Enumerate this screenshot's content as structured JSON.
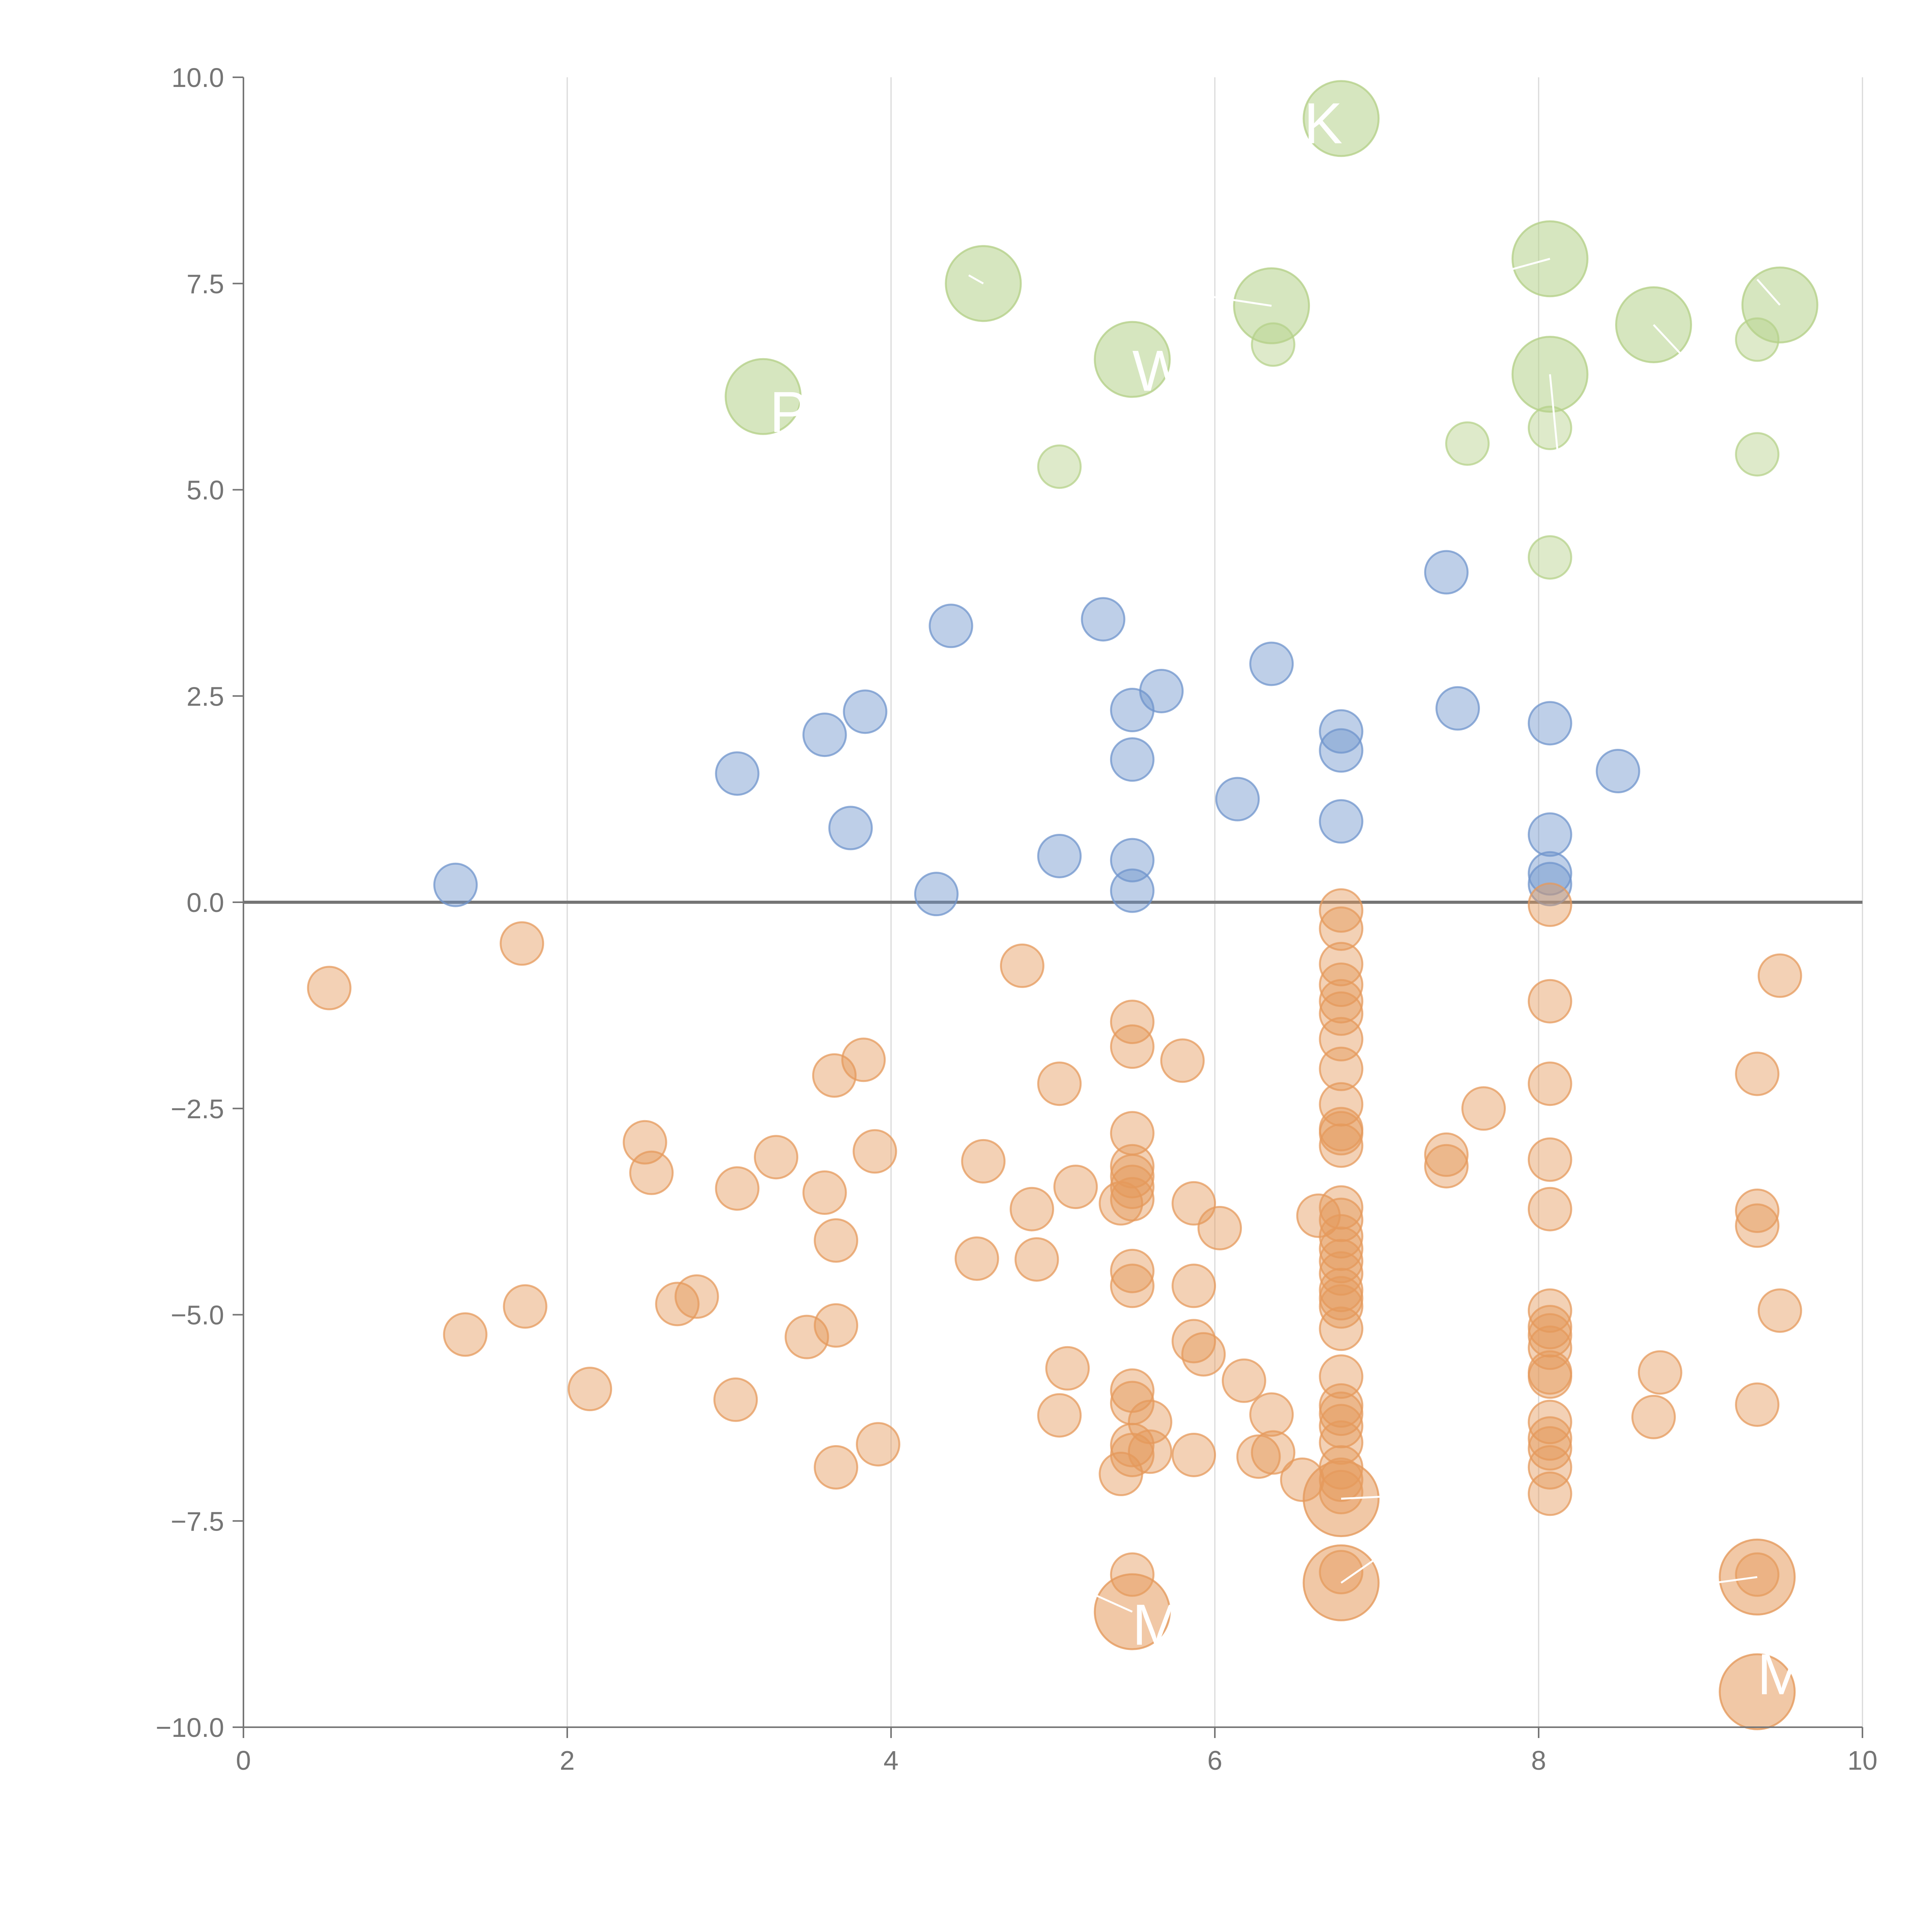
{
  "chart_data": {
    "type": "scatter",
    "title": "",
    "xlabel": "",
    "ylabel": "",
    "xlim": [
      0,
      10
    ],
    "ylim": [
      -10,
      10
    ],
    "grid": "vertical",
    "x_ticks": [
      "0",
      "2",
      "4",
      "6",
      "8",
      "10"
    ],
    "y_ticks": [
      "−10.0",
      "−7.5",
      "−5.0",
      "−2.5",
      "0.0",
      "2.5",
      "5.0",
      "7.5",
      "10.0"
    ],
    "x_tick_values": [
      0,
      2,
      4,
      6,
      8,
      10
    ],
    "y_tick_values": [
      -10,
      -7.5,
      -5,
      -2.5,
      0,
      2.5,
      5,
      7.5,
      10
    ],
    "series": [
      {
        "name": "blue",
        "color": "#6f94cc",
        "points": [
          [
            1.31,
            0.21
          ],
          [
            3.05,
            1.56
          ],
          [
            3.59,
            2.03
          ],
          [
            3.75,
            0.9
          ],
          [
            3.84,
            2.31
          ],
          [
            4.28,
            0.1
          ],
          [
            4.37,
            3.35
          ],
          [
            5.04,
            0.56
          ],
          [
            5.31,
            3.43
          ],
          [
            5.49,
            2.33
          ],
          [
            5.49,
            1.73
          ],
          [
            5.49,
            0.51
          ],
          [
            5.49,
            0.14
          ],
          [
            5.67,
            2.56
          ],
          [
            6.14,
            1.25
          ],
          [
            6.35,
            2.89
          ],
          [
            6.78,
            2.07
          ],
          [
            6.78,
            1.84
          ],
          [
            6.78,
            0.98
          ],
          [
            7.43,
            4.0
          ],
          [
            7.5,
            2.35
          ],
          [
            8.07,
            2.17
          ],
          [
            8.07,
            0.82
          ],
          [
            8.07,
            0.35
          ],
          [
            8.07,
            0.22
          ],
          [
            8.49,
            1.59
          ]
        ]
      },
      {
        "name": "orange",
        "color": "#e59a5c",
        "points": [
          [
            0.53,
            -1.04
          ],
          [
            1.72,
            -0.5
          ],
          [
            1.37,
            -5.24
          ],
          [
            1.74,
            -4.9
          ],
          [
            2.14,
            -5.9
          ],
          [
            2.48,
            -2.91
          ],
          [
            2.52,
            -3.28
          ],
          [
            2.68,
            -4.87
          ],
          [
            2.8,
            -4.78
          ],
          [
            3.04,
            -6.03
          ],
          [
            3.05,
            -3.47
          ],
          [
            3.29,
            -3.09
          ],
          [
            3.48,
            -5.27
          ],
          [
            3.59,
            -3.52
          ],
          [
            3.65,
            -2.1
          ],
          [
            3.66,
            -4.1
          ],
          [
            3.66,
            -5.13
          ],
          [
            3.66,
            -6.85
          ],
          [
            3.83,
            -1.91
          ],
          [
            3.9,
            -3.02
          ],
          [
            3.92,
            -6.57
          ],
          [
            4.53,
            -4.32
          ],
          [
            4.57,
            -3.14
          ],
          [
            4.81,
            -0.77
          ],
          [
            4.87,
            -3.72
          ],
          [
            4.9,
            -4.33
          ],
          [
            5.04,
            -2.2
          ],
          [
            5.04,
            -6.22
          ],
          [
            5.09,
            -5.65
          ],
          [
            5.14,
            -3.45
          ],
          [
            5.42,
            -3.65
          ],
          [
            5.42,
            -6.93
          ],
          [
            5.49,
            -1.45
          ],
          [
            5.49,
            -1.75
          ],
          [
            5.49,
            -2.8
          ],
          [
            5.49,
            -3.2
          ],
          [
            5.49,
            -3.32
          ],
          [
            5.49,
            -3.45
          ],
          [
            5.49,
            -3.6
          ],
          [
            5.49,
            -4.47
          ],
          [
            5.49,
            -4.65
          ],
          [
            5.49,
            -5.92
          ],
          [
            5.49,
            -6.07
          ],
          [
            5.49,
            -6.58
          ],
          [
            5.49,
            -6.7
          ],
          [
            5.49,
            -8.15
          ],
          [
            5.6,
            -6.3
          ],
          [
            5.6,
            -6.66
          ],
          [
            5.8,
            -1.92
          ],
          [
            5.87,
            -3.65
          ],
          [
            5.87,
            -4.65
          ],
          [
            5.87,
            -5.32
          ],
          [
            5.87,
            -6.7
          ],
          [
            5.93,
            -5.48
          ],
          [
            6.03,
            -3.95
          ],
          [
            6.18,
            -5.8
          ],
          [
            6.27,
            -6.72
          ],
          [
            6.35,
            -6.21
          ],
          [
            6.36,
            -6.67
          ],
          [
            6.54,
            -7.0
          ],
          [
            6.64,
            -3.8
          ],
          [
            6.78,
            -0.1
          ],
          [
            6.78,
            -0.32
          ],
          [
            6.78,
            -0.75
          ],
          [
            6.78,
            -1.0
          ],
          [
            6.78,
            -1.2
          ],
          [
            6.78,
            -1.35
          ],
          [
            6.78,
            -1.66
          ],
          [
            6.78,
            -2.02
          ],
          [
            6.78,
            -2.45
          ],
          [
            6.78,
            -2.75
          ],
          [
            6.78,
            -2.8
          ],
          [
            6.78,
            -2.95
          ],
          [
            6.78,
            -3.7
          ],
          [
            6.78,
            -3.85
          ],
          [
            6.78,
            -4.05
          ],
          [
            6.78,
            -4.2
          ],
          [
            6.78,
            -4.35
          ],
          [
            6.78,
            -4.5
          ],
          [
            6.78,
            -4.7
          ],
          [
            6.78,
            -4.8
          ],
          [
            6.78,
            -4.9
          ],
          [
            6.78,
            -5.17
          ],
          [
            6.78,
            -5.75
          ],
          [
            6.78,
            -6.1
          ],
          [
            6.78,
            -6.2
          ],
          [
            6.78,
            -6.35
          ],
          [
            6.78,
            -6.55
          ],
          [
            6.78,
            -6.85
          ],
          [
            6.78,
            -7.0
          ],
          [
            6.78,
            -7.15
          ],
          [
            6.78,
            -8.12
          ],
          [
            7.43,
            -3.06
          ],
          [
            7.43,
            -3.2
          ],
          [
            7.66,
            -2.5
          ],
          [
            8.07,
            -0.03
          ],
          [
            8.07,
            -1.2
          ],
          [
            8.07,
            -2.2
          ],
          [
            8.07,
            -3.12
          ],
          [
            8.07,
            -3.72
          ],
          [
            8.07,
            -4.95
          ],
          [
            8.07,
            -5.15
          ],
          [
            8.07,
            -5.25
          ],
          [
            8.07,
            -5.4
          ],
          [
            8.07,
            -5.7
          ],
          [
            8.07,
            -5.75
          ],
          [
            8.07,
            -6.3
          ],
          [
            8.07,
            -6.5
          ],
          [
            8.07,
            -6.62
          ],
          [
            8.07,
            -6.85
          ],
          [
            8.07,
            -7.17
          ],
          [
            8.71,
            -6.24
          ],
          [
            8.75,
            -5.7
          ],
          [
            9.35,
            -2.08
          ],
          [
            9.35,
            -3.74
          ],
          [
            9.35,
            -3.92
          ],
          [
            9.35,
            -6.09
          ],
          [
            9.35,
            -8.15
          ],
          [
            9.49,
            -0.89
          ],
          [
            9.49,
            -4.95
          ]
        ],
        "highlighted": [
          [
            5.49,
            -8.6
          ],
          [
            6.78,
            -7.23
          ],
          [
            6.78,
            -8.25
          ],
          [
            9.35,
            -8.18
          ],
          [
            9.35,
            -9.57
          ]
        ]
      },
      {
        "name": "green",
        "color": "#b5d18a",
        "points": [
          [
            5.04,
            5.28
          ],
          [
            6.36,
            6.76
          ],
          [
            7.56,
            5.56
          ],
          [
            8.07,
            5.75
          ],
          [
            8.07,
            4.18
          ],
          [
            9.35,
            6.82
          ],
          [
            9.35,
            5.43
          ]
        ],
        "highlighted": [
          [
            3.21,
            6.13
          ],
          [
            4.57,
            7.5
          ],
          [
            5.49,
            6.58
          ],
          [
            6.35,
            7.23
          ],
          [
            6.78,
            9.5
          ],
          [
            8.07,
            7.8
          ],
          [
            8.07,
            6.4
          ],
          [
            8.71,
            7.0
          ],
          [
            9.49,
            7.24
          ]
        ]
      }
    ],
    "annotations": [
      {
        "text": "K",
        "x": 6.55,
        "y": 9.2
      },
      {
        "text": "'",
        "x": 4.55,
        "y": 7.9
      },
      {
        "text": "W",
        "x": 5.49,
        "y": 6.2
      },
      {
        "text": "P",
        "x": 3.25,
        "y": 5.7
      },
      {
        "text": "M",
        "x": 5.49,
        "y": -9.0
      },
      {
        "text": "MG",
        "x": 9.35,
        "y": -9.6
      }
    ],
    "annotation_leaders": [
      [
        [
          4.57,
          7.5
        ],
        [
          4.48,
          7.6
        ]
      ],
      [
        [
          6.35,
          7.23
        ],
        [
          5.95,
          7.35
        ]
      ],
      [
        [
          8.07,
          7.8
        ],
        [
          7.7,
          7.6
        ]
      ],
      [
        [
          8.07,
          6.4
        ],
        [
          8.12,
          5.4
        ]
      ],
      [
        [
          8.71,
          7.0
        ],
        [
          8.9,
          6.6
        ]
      ],
      [
        [
          9.49,
          7.24
        ],
        [
          9.35,
          7.55
        ]
      ],
      [
        [
          5.49,
          -8.6
        ],
        [
          5.15,
          -8.3
        ]
      ],
      [
        [
          6.78,
          -7.23
        ],
        [
          7.6,
          -7.15
        ]
      ],
      [
        [
          6.78,
          -8.25
        ],
        [
          7.0,
          -7.95
        ]
      ],
      [
        [
          9.35,
          -8.18
        ],
        [
          8.9,
          -8.3
        ]
      ]
    ]
  }
}
